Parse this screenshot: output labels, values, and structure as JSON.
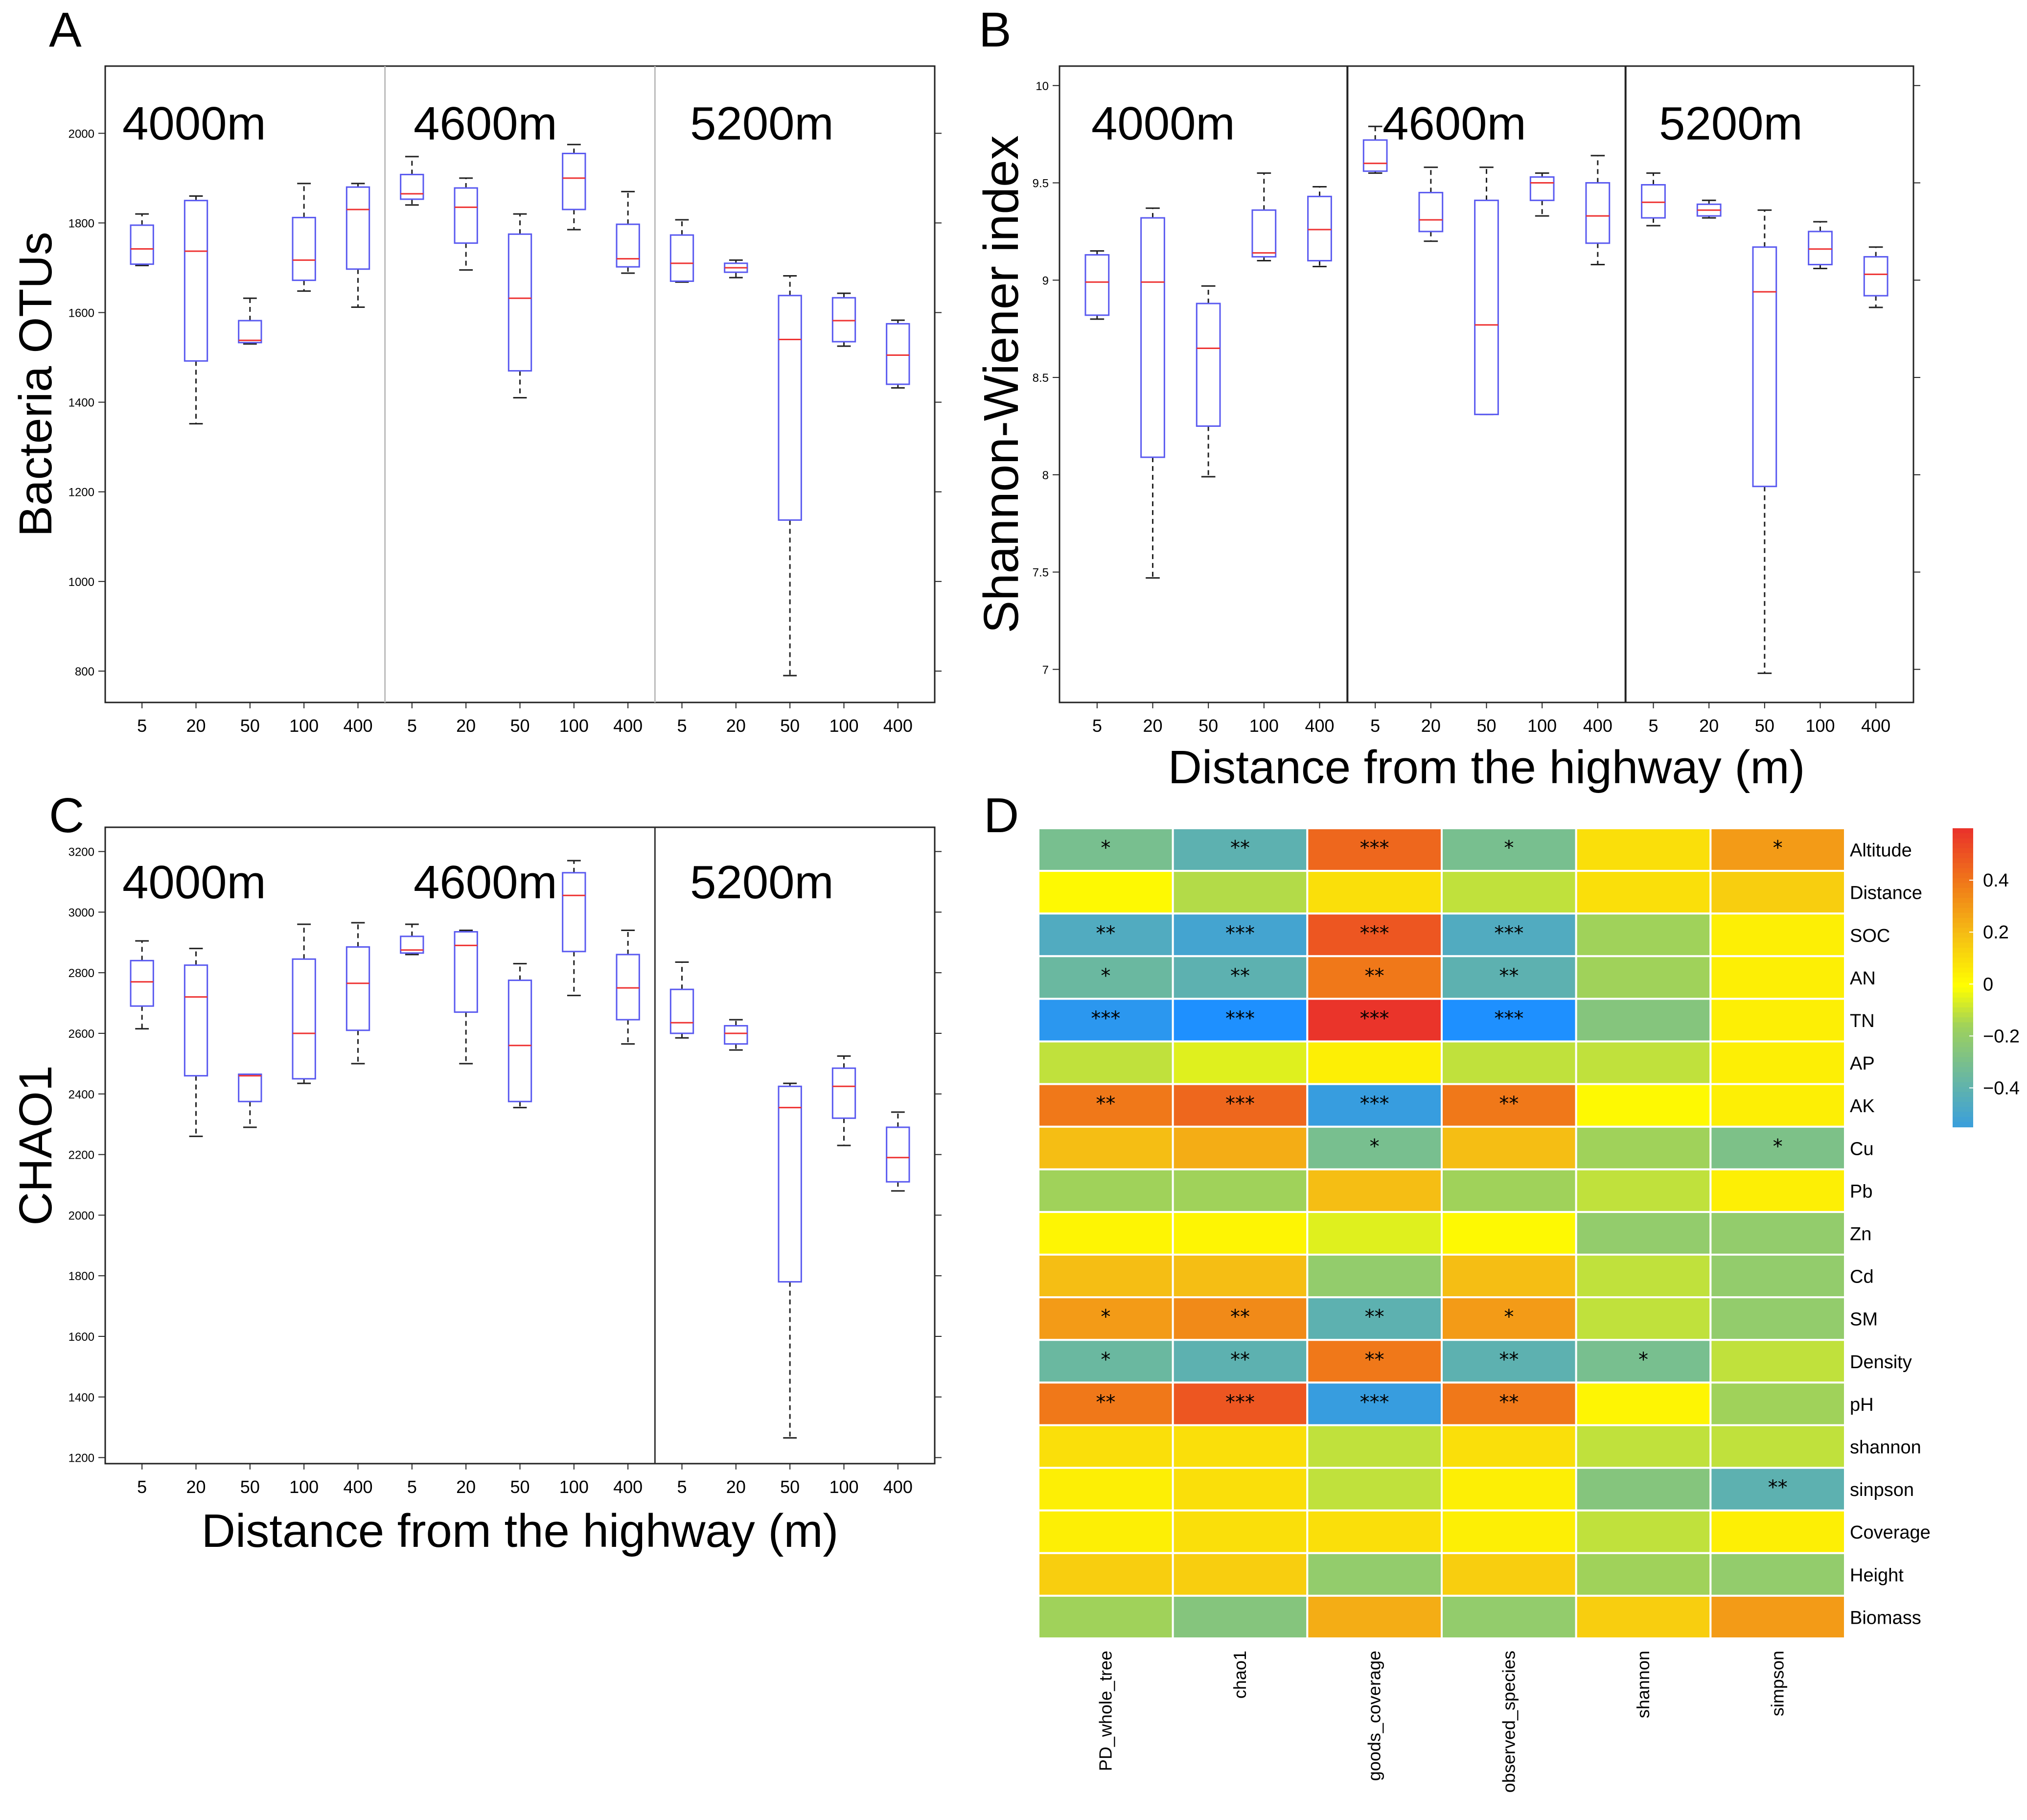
{
  "panel_labels": [
    "A",
    "B",
    "C",
    "D"
  ],
  "chart_data": [
    {
      "type": "box",
      "panel": "A",
      "title": "",
      "ylabel": "Bacteria OTUs",
      "xlabel": "",
      "ylim": [
        730,
        2150
      ],
      "yticks": [
        800,
        1000,
        1200,
        1400,
        1600,
        1800,
        2000
      ],
      "group_labels": [
        "4000m",
        "4600m",
        "5200m"
      ],
      "divider_style": "light",
      "boxes": [
        {
          "group": "4000m",
          "x": "5",
          "whislo": 1705,
          "q1": 1708,
          "med": 1742,
          "q3": 1795,
          "whishi": 1820
        },
        {
          "group": "4000m",
          "x": "20",
          "whislo": 1352,
          "q1": 1492,
          "med": 1737,
          "q3": 1850,
          "whishi": 1860
        },
        {
          "group": "4000m",
          "x": "50",
          "whislo": 1530,
          "q1": 1533,
          "med": 1538,
          "q3": 1582,
          "whishi": 1632
        },
        {
          "group": "4000m",
          "x": "100",
          "whislo": 1648,
          "q1": 1672,
          "med": 1717,
          "q3": 1812,
          "whishi": 1888
        },
        {
          "group": "4000m",
          "x": "400",
          "whislo": 1612,
          "q1": 1697,
          "med": 1830,
          "q3": 1880,
          "whishi": 1888
        },
        {
          "group": "4600m",
          "x": "5",
          "whislo": 1840,
          "q1": 1853,
          "med": 1865,
          "q3": 1908,
          "whishi": 1948
        },
        {
          "group": "4600m",
          "x": "20",
          "whislo": 1695,
          "q1": 1755,
          "med": 1835,
          "q3": 1878,
          "whishi": 1900
        },
        {
          "group": "4600m",
          "x": "50",
          "whislo": 1410,
          "q1": 1470,
          "med": 1632,
          "q3": 1775,
          "whishi": 1820
        },
        {
          "group": "4600m",
          "x": "100",
          "whislo": 1785,
          "q1": 1830,
          "med": 1900,
          "q3": 1955,
          "whishi": 1975
        },
        {
          "group": "4600m",
          "x": "400",
          "whislo": 1688,
          "q1": 1702,
          "med": 1720,
          "q3": 1797,
          "whishi": 1870
        },
        {
          "group": "5200m",
          "x": "5",
          "whislo": 1668,
          "q1": 1670,
          "med": 1710,
          "q3": 1773,
          "whishi": 1807
        },
        {
          "group": "5200m",
          "x": "20",
          "whislo": 1678,
          "q1": 1690,
          "med": 1700,
          "q3": 1710,
          "whishi": 1717
        },
        {
          "group": "5200m",
          "x": "50",
          "whislo": 790,
          "q1": 1137,
          "med": 1540,
          "q3": 1638,
          "whishi": 1682
        },
        {
          "group": "5200m",
          "x": "100",
          "whislo": 1525,
          "q1": 1535,
          "med": 1582,
          "q3": 1633,
          "whishi": 1643
        },
        {
          "group": "5200m",
          "x": "400",
          "whislo": 1432,
          "q1": 1440,
          "med": 1505,
          "q3": 1575,
          "whishi": 1583
        }
      ]
    },
    {
      "type": "box",
      "panel": "B",
      "title": "",
      "ylabel": "Shannon-Wiener index",
      "xlabel": "Distance from the highway (m)",
      "ylim": [
        6.83,
        10.1
      ],
      "yticks": [
        7,
        7.5,
        8,
        8.5,
        9,
        9.5,
        10
      ],
      "group_labels": [
        "4000m",
        "4600m",
        "5200m"
      ],
      "divider_style": "dark",
      "boxes": [
        {
          "group": "4000m",
          "x": "5",
          "whislo": 8.8,
          "q1": 8.82,
          "med": 8.99,
          "q3": 9.13,
          "whishi": 9.15
        },
        {
          "group": "4000m",
          "x": "20",
          "whislo": 7.47,
          "q1": 8.09,
          "med": 8.99,
          "q3": 9.32,
          "whishi": 9.37
        },
        {
          "group": "4000m",
          "x": "50",
          "whislo": 7.99,
          "q1": 8.25,
          "med": 8.65,
          "q3": 8.88,
          "whishi": 8.97
        },
        {
          "group": "4000m",
          "x": "100",
          "whislo": 9.1,
          "q1": 9.12,
          "med": 9.14,
          "q3": 9.36,
          "whishi": 9.55
        },
        {
          "group": "4000m",
          "x": "400",
          "whislo": 9.07,
          "q1": 9.1,
          "med": 9.26,
          "q3": 9.43,
          "whishi": 9.48
        },
        {
          "group": "4600m",
          "x": "5",
          "whislo": 9.55,
          "q1": 9.56,
          "med": 9.6,
          "q3": 9.72,
          "whishi": 9.79
        },
        {
          "group": "4600m",
          "x": "20",
          "whislo": 9.2,
          "q1": 9.25,
          "med": 9.31,
          "q3": 9.45,
          "whishi": 9.58
        },
        {
          "group": "4600m",
          "x": "50",
          "whislo": 8.31,
          "q1": 8.31,
          "med": 8.77,
          "q3": 9.41,
          "whishi": 9.58
        },
        {
          "group": "4600m",
          "x": "100",
          "whislo": 9.33,
          "q1": 9.41,
          "med": 9.5,
          "q3": 9.53,
          "whishi": 9.55
        },
        {
          "group": "4600m",
          "x": "400",
          "whislo": 9.08,
          "q1": 9.19,
          "med": 9.33,
          "q3": 9.5,
          "whishi": 9.64
        },
        {
          "group": "5200m",
          "x": "5",
          "whislo": 9.28,
          "q1": 9.32,
          "med": 9.4,
          "q3": 9.49,
          "whishi": 9.55
        },
        {
          "group": "5200m",
          "x": "20",
          "whislo": 9.32,
          "q1": 9.33,
          "med": 9.36,
          "q3": 9.39,
          "whishi": 9.41
        },
        {
          "group": "5200m",
          "x": "50",
          "whislo": 6.98,
          "q1": 7.94,
          "med": 8.94,
          "q3": 9.17,
          "whishi": 9.36
        },
        {
          "group": "5200m",
          "x": "100",
          "whislo": 9.06,
          "q1": 9.08,
          "med": 9.16,
          "q3": 9.25,
          "whishi": 9.3
        },
        {
          "group": "5200m",
          "x": "400",
          "whislo": 8.86,
          "q1": 8.92,
          "med": 9.03,
          "q3": 9.12,
          "whishi": 9.17
        }
      ]
    },
    {
      "type": "box",
      "panel": "C",
      "title": "",
      "ylabel": "CHAO1",
      "xlabel": "Distance from the highway (m)",
      "ylim": [
        1180,
        3280
      ],
      "yticks": [
        1200,
        1400,
        1600,
        1800,
        2000,
        2200,
        2400,
        2600,
        2800,
        3000,
        3200
      ],
      "group_labels": [
        "4000m",
        "4600m",
        "5200m"
      ],
      "divider_style": "dark_one",
      "boxes": [
        {
          "group": "4000m",
          "x": "5",
          "whislo": 2615,
          "q1": 2690,
          "med": 2770,
          "q3": 2840,
          "whishi": 2905
        },
        {
          "group": "4000m",
          "x": "20",
          "whislo": 2260,
          "q1": 2460,
          "med": 2720,
          "q3": 2825,
          "whishi": 2880
        },
        {
          "group": "4000m",
          "x": "50",
          "whislo": 2290,
          "q1": 2375,
          "med": 2460,
          "q3": 2465,
          "whishi": 2465
        },
        {
          "group": "4000m",
          "x": "100",
          "whislo": 2435,
          "q1": 2450,
          "med": 2600,
          "q3": 2845,
          "whishi": 2960
        },
        {
          "group": "4000m",
          "x": "400",
          "whislo": 2500,
          "q1": 2610,
          "med": 2765,
          "q3": 2885,
          "whishi": 2965
        },
        {
          "group": "4600m",
          "x": "5",
          "whislo": 2860,
          "q1": 2865,
          "med": 2875,
          "q3": 2920,
          "whishi": 2960
        },
        {
          "group": "4600m",
          "x": "20",
          "whislo": 2500,
          "q1": 2670,
          "med": 2890,
          "q3": 2935,
          "whishi": 2940
        },
        {
          "group": "4600m",
          "x": "50",
          "whislo": 2355,
          "q1": 2375,
          "med": 2560,
          "q3": 2775,
          "whishi": 2830
        },
        {
          "group": "4600m",
          "x": "100",
          "whislo": 2725,
          "q1": 2870,
          "med": 3055,
          "q3": 3130,
          "whishi": 3170
        },
        {
          "group": "4600m",
          "x": "400",
          "whislo": 2565,
          "q1": 2645,
          "med": 2750,
          "q3": 2860,
          "whishi": 2940
        },
        {
          "group": "5200m",
          "x": "5",
          "whislo": 2585,
          "q1": 2600,
          "med": 2635,
          "q3": 2745,
          "whishi": 2835
        },
        {
          "group": "5200m",
          "x": "20",
          "whislo": 2545,
          "q1": 2565,
          "med": 2600,
          "q3": 2625,
          "whishi": 2645
        },
        {
          "group": "5200m",
          "x": "50",
          "whislo": 1265,
          "q1": 1780,
          "med": 2355,
          "q3": 2425,
          "whishi": 2435
        },
        {
          "group": "5200m",
          "x": "100",
          "whislo": 2230,
          "q1": 2320,
          "med": 2425,
          "q3": 2485,
          "whishi": 2525
        },
        {
          "group": "5200m",
          "x": "400",
          "whislo": 2080,
          "q1": 2110,
          "med": 2190,
          "q3": 2290,
          "whishi": 2340
        }
      ]
    },
    {
      "type": "heatmap",
      "panel": "D",
      "title": "",
      "columns": [
        "PD_whole_tree",
        "chao1",
        "goods_coverage",
        "observed_species",
        "shannon",
        "simpson"
      ],
      "rows": [
        "Altitude",
        "Distance",
        "SOC",
        "AN",
        "TN",
        "AP",
        "AK",
        "Cu",
        "Pb",
        "Zn",
        "Cd",
        "SM",
        "Density",
        "pH",
        "shannon",
        "sinpson",
        "Coverage",
        "Height",
        "Biomass"
      ],
      "values": [
        [
          -0.3,
          -0.4,
          0.45,
          -0.3,
          0.1,
          0.3
        ],
        [
          0.02,
          -0.12,
          0.1,
          -0.1,
          0.1,
          0.15
        ],
        [
          -0.45,
          -0.5,
          0.5,
          -0.45,
          -0.15,
          0.05
        ],
        [
          -0.35,
          -0.4,
          0.4,
          -0.4,
          -0.15,
          0.05
        ],
        [
          -0.6,
          -0.65,
          0.6,
          -0.65,
          -0.25,
          0.05
        ],
        [
          -0.1,
          -0.05,
          0.05,
          -0.1,
          -0.1,
          0.05
        ],
        [
          0.4,
          0.45,
          -0.55,
          0.4,
          0.02,
          0.05
        ],
        [
          0.2,
          0.25,
          -0.3,
          0.2,
          -0.15,
          -0.28
        ],
        [
          -0.15,
          -0.15,
          0.2,
          -0.15,
          -0.1,
          0.05
        ],
        [
          0.03,
          0.03,
          -0.05,
          0.02,
          -0.2,
          -0.2
        ],
        [
          0.2,
          0.2,
          -0.2,
          0.2,
          -0.1,
          -0.2
        ],
        [
          0.3,
          0.35,
          -0.4,
          0.3,
          -0.1,
          -0.2
        ],
        [
          -0.35,
          -0.4,
          0.4,
          -0.4,
          -0.3,
          -0.1
        ],
        [
          0.4,
          0.5,
          -0.55,
          0.4,
          0.03,
          -0.15
        ],
        [
          0.1,
          0.1,
          -0.1,
          0.1,
          -0.1,
          -0.1
        ],
        [
          0.05,
          0.1,
          -0.1,
          0.05,
          -0.25,
          -0.4
        ],
        [
          0.05,
          0.1,
          0.1,
          0.05,
          -0.1,
          0.05
        ],
        [
          0.15,
          0.15,
          -0.2,
          0.15,
          -0.15,
          -0.2
        ],
        [
          -0.15,
          -0.25,
          0.25,
          -0.2,
          0.15,
          0.3
        ]
      ],
      "significance": [
        [
          "*",
          "**",
          "***",
          "*",
          "",
          "*"
        ],
        [
          "",
          "",
          "",
          "",
          "",
          ""
        ],
        [
          "**",
          "***",
          "***",
          "***",
          "",
          ""
        ],
        [
          "*",
          "**",
          "**",
          "**",
          "",
          ""
        ],
        [
          "***",
          "***",
          "***",
          "***",
          "",
          ""
        ],
        [
          "",
          "",
          "",
          "",
          "",
          ""
        ],
        [
          "**",
          "***",
          "***",
          "**",
          "",
          ""
        ],
        [
          "",
          "",
          "*",
          "",
          "",
          "*"
        ],
        [
          "",
          "",
          "",
          "",
          "",
          ""
        ],
        [
          "",
          "",
          "",
          "",
          "",
          ""
        ],
        [
          "",
          "",
          "",
          "",
          "",
          ""
        ],
        [
          "*",
          "**",
          "**",
          "*",
          "",
          ""
        ],
        [
          "*",
          "**",
          "**",
          "**",
          "*",
          ""
        ],
        [
          "**",
          "***",
          "***",
          "**",
          "",
          ""
        ],
        [
          "",
          "",
          "",
          "",
          "",
          ""
        ],
        [
          "",
          "",
          "",
          "",
          "",
          "**"
        ],
        [
          "",
          "",
          "",
          "",
          "",
          ""
        ],
        [
          "",
          "",
          "",
          "",
          "",
          ""
        ],
        [
          "",
          "",
          "",
          "",
          "",
          ""
        ]
      ],
      "colorbar": {
        "range": [
          -0.55,
          0.6
        ],
        "ticks": [
          0.4,
          0.2,
          0,
          -0.2,
          -0.4
        ],
        "tick_labels": [
          "0.4",
          "0.2",
          "0",
          "−0.2",
          "−0.4"
        ]
      }
    }
  ],
  "colors": {
    "box_stroke": "#5a5af0",
    "median": "#ee3333",
    "whisker": "#222222",
    "frame": "#222222",
    "light_divider": "#bbbbbb",
    "heat_low": "#1e90ff",
    "heat_mid": "#ffff00",
    "heat_high": "#e8232e"
  }
}
